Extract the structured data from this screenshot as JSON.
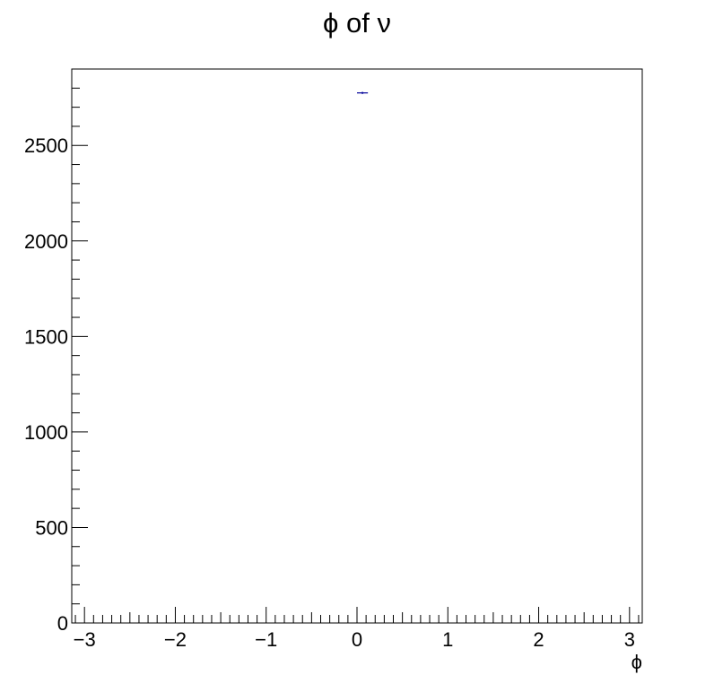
{
  "chart_data": {
    "type": "histogram",
    "title": "ϕ of ν",
    "xlabel": "ϕ",
    "ylabel": "",
    "xlim": [
      -3.14,
      3.14
    ],
    "ylim": [
      0,
      2900
    ],
    "x_ticks": [
      -3,
      -2,
      -1,
      0,
      1,
      2,
      3
    ],
    "x_tick_labels": [
      "−3",
      "−2",
      "−1",
      "0",
      "1",
      "2",
      "3"
    ],
    "y_ticks": [
      0,
      500,
      1000,
      1500,
      2000,
      2500
    ],
    "y_tick_labels": [
      "0",
      "500",
      "1000",
      "1500",
      "2000",
      "2500"
    ],
    "grid": false,
    "legend": "none",
    "series": [
      {
        "points": [
          {
            "x": 0.06,
            "y": 2775,
            "xerr": 0.06,
            "yerr": 0
          }
        ]
      }
    ],
    "marker_color": "#000099"
  }
}
